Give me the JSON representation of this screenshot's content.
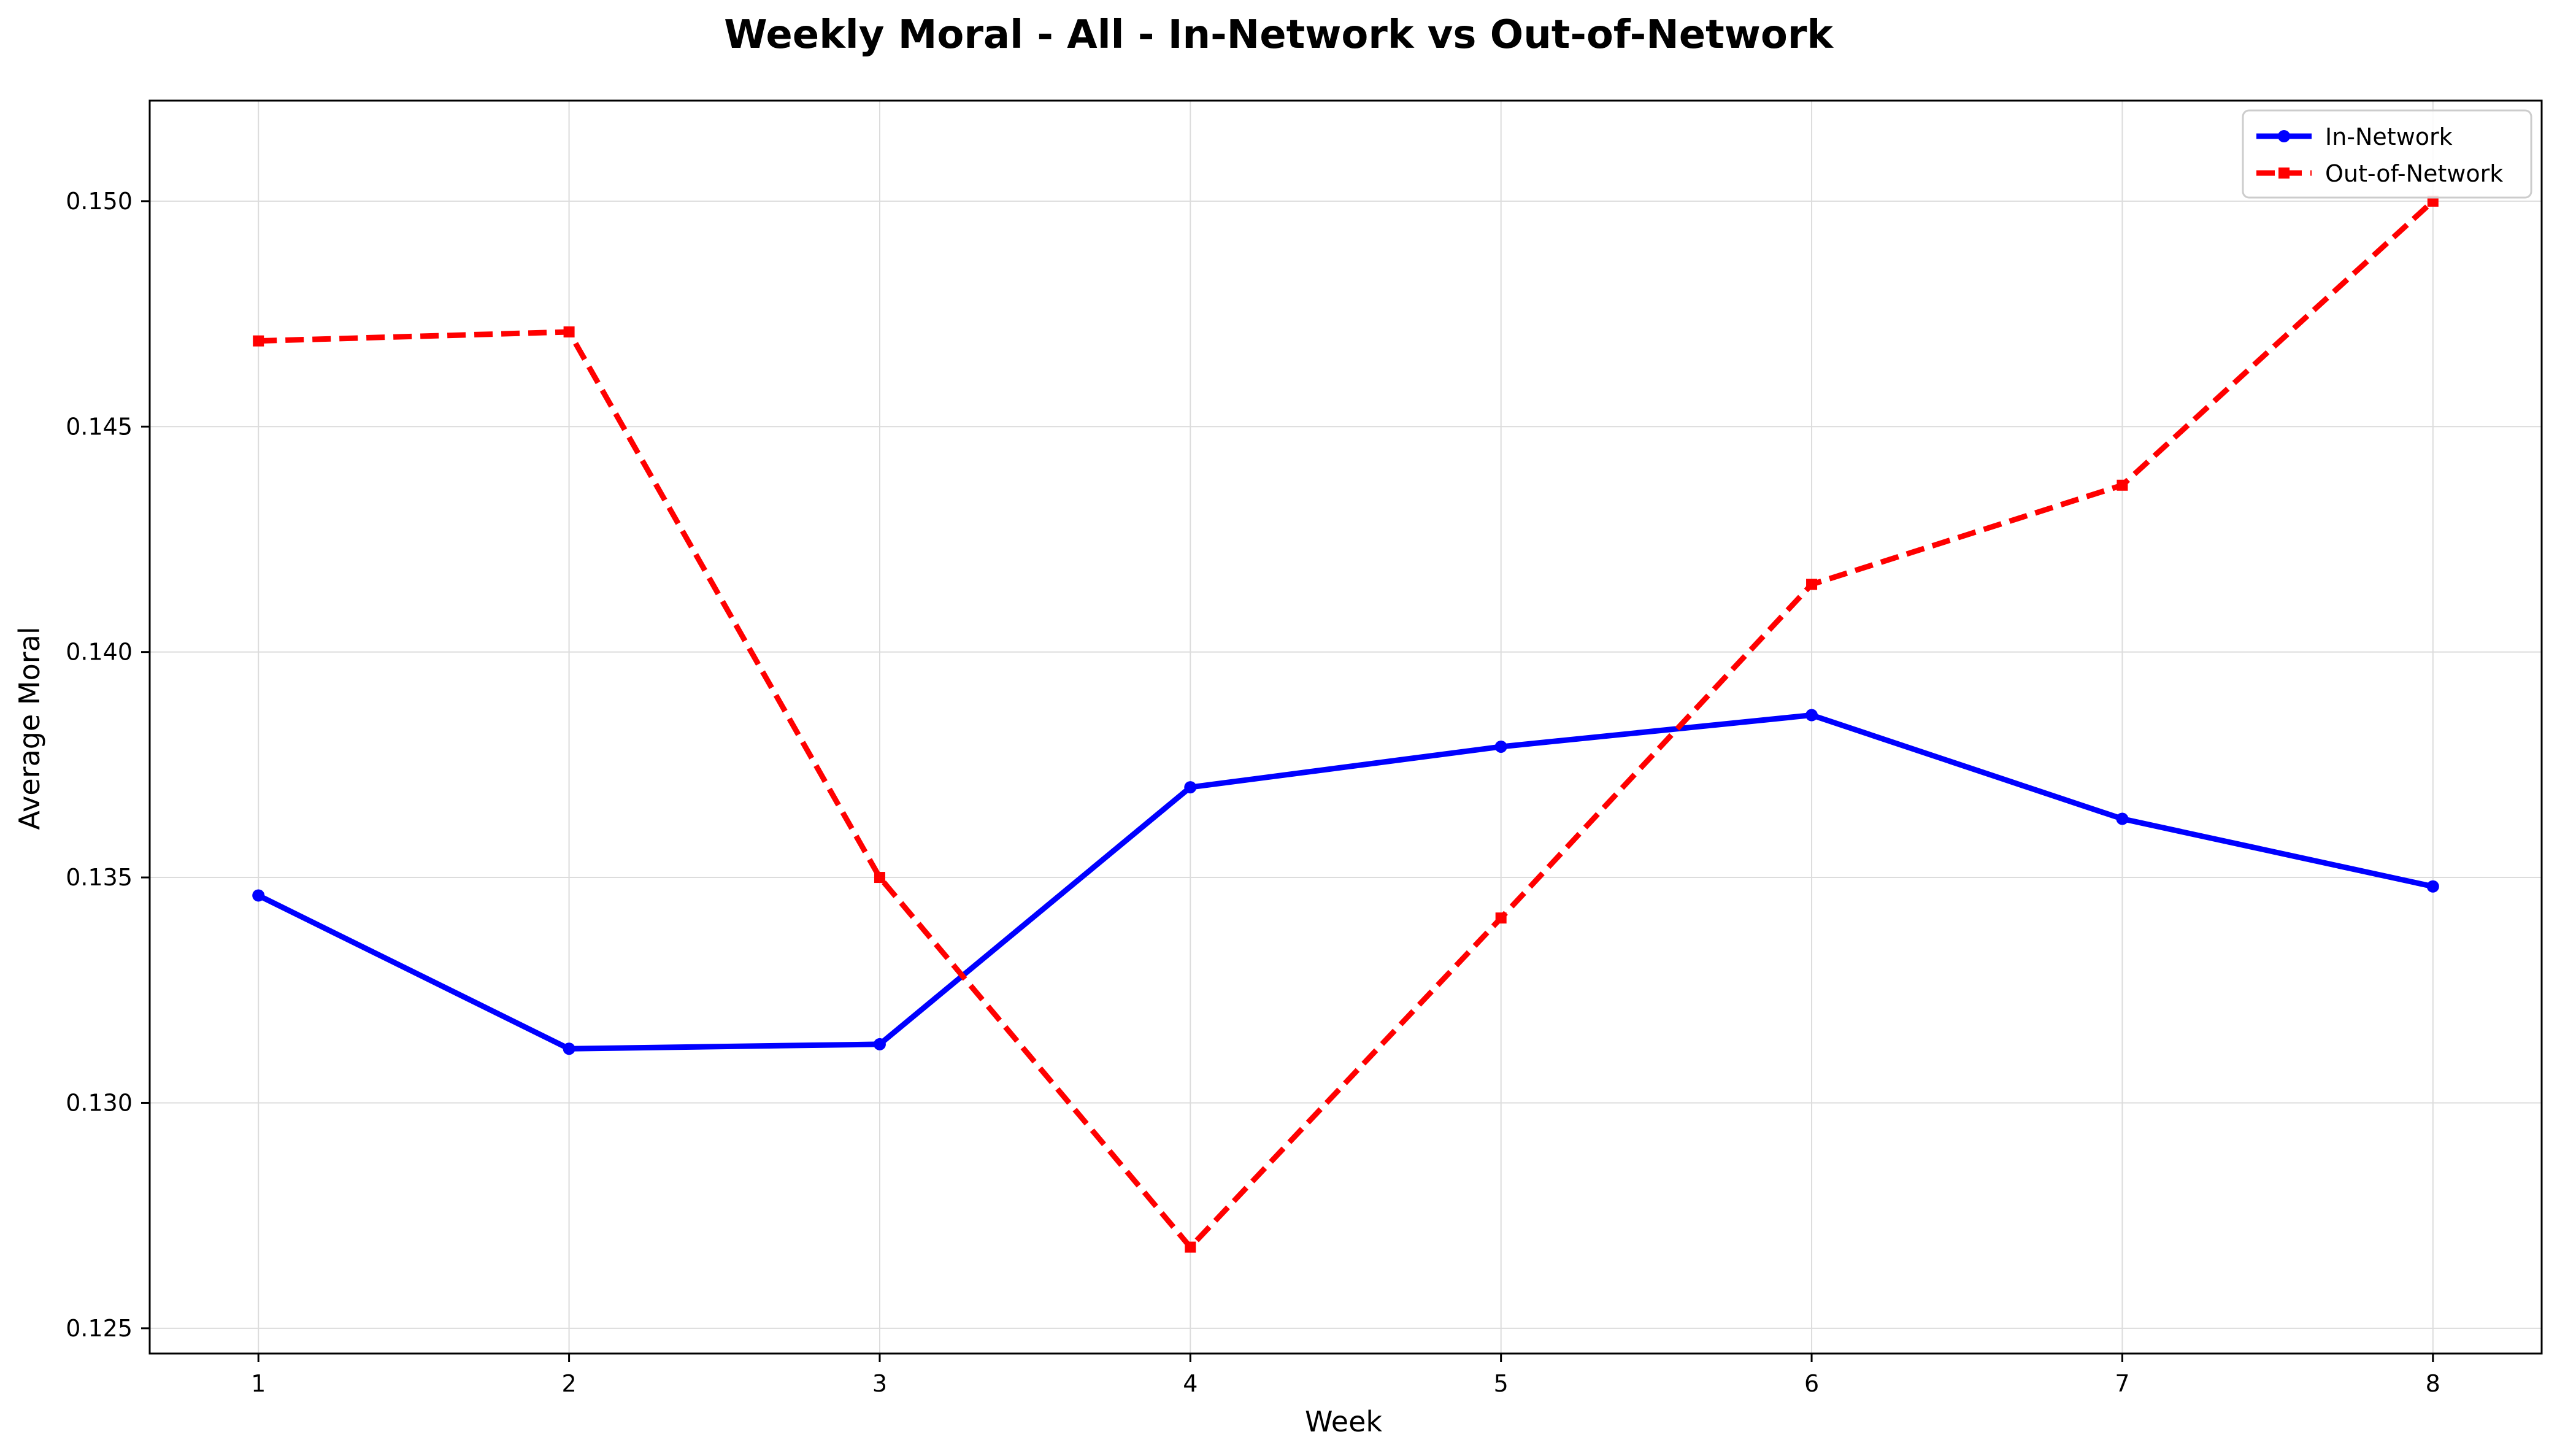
{
  "chart_data": {
    "type": "line",
    "title": "Weekly Moral - All - In-Network vs Out-of-Network",
    "xlabel": "Week",
    "ylabel": "Average Moral",
    "x": [
      1,
      2,
      3,
      4,
      5,
      6,
      7,
      8
    ],
    "x_ticks": [
      "1",
      "2",
      "3",
      "4",
      "5",
      "6",
      "7",
      "8"
    ],
    "xlim": [
      0.65,
      8.35
    ],
    "y_ticks": [
      "0.125",
      "0.130",
      "0.135",
      "0.140",
      "0.145",
      "0.150"
    ],
    "ylim": [
      0.12444,
      0.15223
    ],
    "grid": true,
    "legend_position": "top-right",
    "series": [
      {
        "name": "In-Network",
        "color": "#0000ff",
        "line_style": "solid",
        "marker": "circle",
        "values": [
          0.1346,
          0.1312,
          0.1313,
          0.137,
          0.1379,
          0.1386,
          0.1363,
          0.1348
        ]
      },
      {
        "name": "Out-of-Network",
        "color": "#ff0000",
        "line_style": "dashed",
        "marker": "square",
        "values": [
          0.1469,
          0.1471,
          0.135,
          0.1268,
          0.1341,
          0.1415,
          0.1437,
          0.15
        ]
      }
    ]
  }
}
